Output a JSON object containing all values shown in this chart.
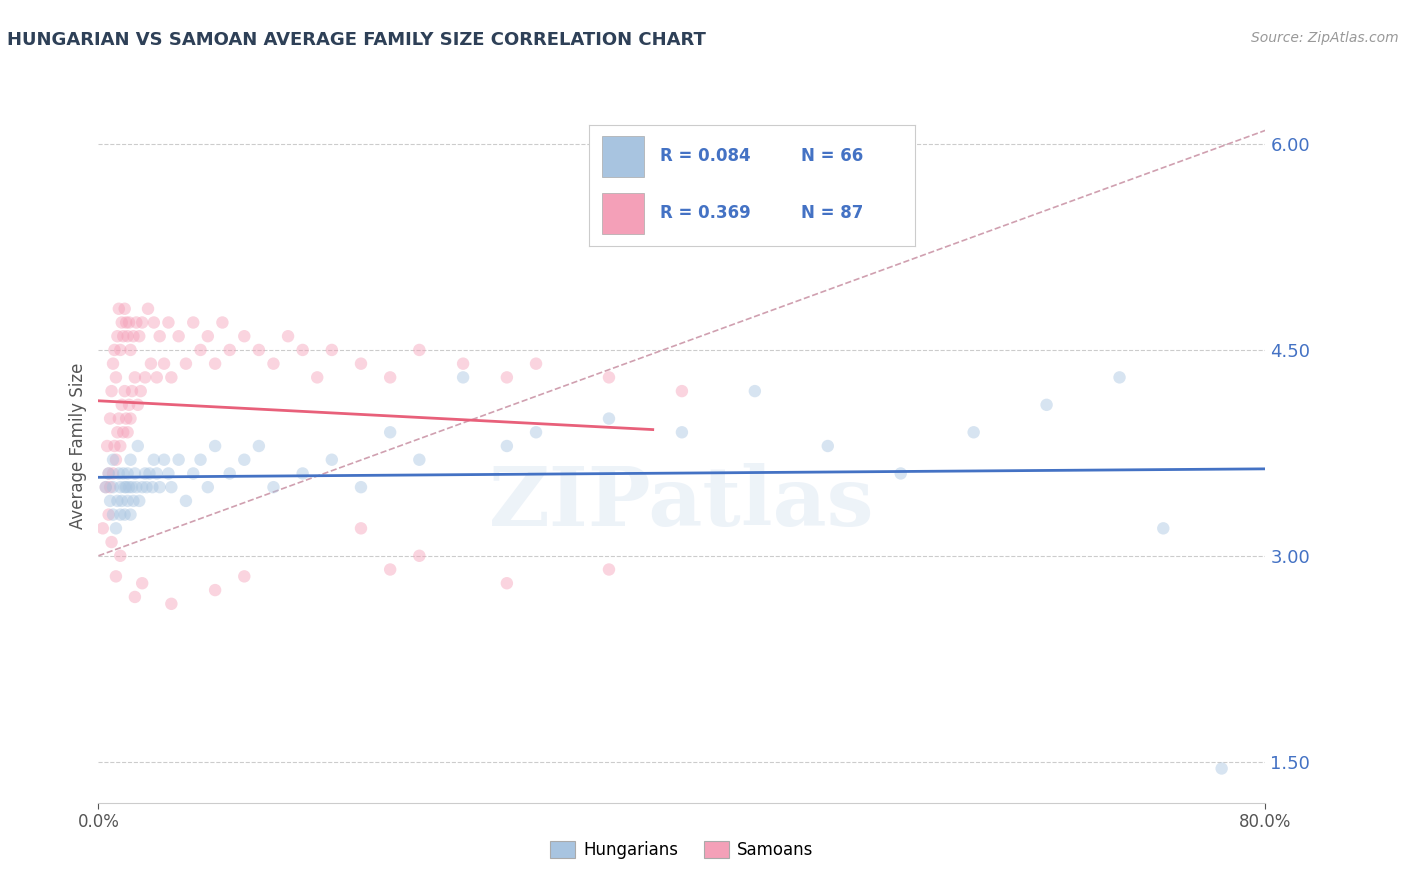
{
  "title": "HUNGARIAN VS SAMOAN AVERAGE FAMILY SIZE CORRELATION CHART",
  "source_text": "Source: ZipAtlas.com",
  "ylabel": "Average Family Size",
  "hungarian_color": "#a8c4e0",
  "samoan_color": "#f4a0b8",
  "hungarian_line_color": "#4472c4",
  "samoan_line_color": "#e8607a",
  "dashed_line_color": "#d0a0b0",
  "xlim": [
    0.0,
    0.8
  ],
  "ylim": [
    1.2,
    6.4
  ],
  "yticks": [
    1.5,
    3.0,
    4.5,
    6.0
  ],
  "xtick_labels": [
    "0.0%",
    "80.0%"
  ],
  "watermark_text": "ZIPatlas",
  "title_color": "#2e4057",
  "axis_color": "#4472c4",
  "background_color": "#ffffff",
  "grid_color": "#cccccc",
  "marker_size": 80,
  "marker_alpha": 0.45,
  "hun_r": "R = 0.084",
  "hun_n": "N = 66",
  "sam_r": "R = 0.369",
  "sam_n": "N = 87",
  "hungarian_scatter_x": [
    0.005,
    0.007,
    0.008,
    0.01,
    0.01,
    0.01,
    0.012,
    0.013,
    0.014,
    0.015,
    0.015,
    0.016,
    0.017,
    0.018,
    0.018,
    0.019,
    0.02,
    0.02,
    0.021,
    0.022,
    0.022,
    0.023,
    0.024,
    0.025,
    0.026,
    0.027,
    0.028,
    0.03,
    0.032,
    0.033,
    0.035,
    0.037,
    0.038,
    0.04,
    0.042,
    0.045,
    0.048,
    0.05,
    0.055,
    0.06,
    0.065,
    0.07,
    0.075,
    0.08,
    0.09,
    0.1,
    0.11,
    0.12,
    0.14,
    0.16,
    0.18,
    0.2,
    0.22,
    0.25,
    0.28,
    0.3,
    0.35,
    0.4,
    0.45,
    0.5,
    0.55,
    0.6,
    0.65,
    0.7,
    0.73,
    0.77
  ],
  "hungarian_scatter_y": [
    3.5,
    3.6,
    3.4,
    3.3,
    3.7,
    3.5,
    3.2,
    3.4,
    3.6,
    3.3,
    3.5,
    3.4,
    3.6,
    3.5,
    3.3,
    3.5,
    3.4,
    3.6,
    3.5,
    3.7,
    3.3,
    3.5,
    3.4,
    3.6,
    3.5,
    3.8,
    3.4,
    3.5,
    3.6,
    3.5,
    3.6,
    3.5,
    3.7,
    3.6,
    3.5,
    3.7,
    3.6,
    3.5,
    3.7,
    3.4,
    3.6,
    3.7,
    3.5,
    3.8,
    3.6,
    3.7,
    3.8,
    3.5,
    3.6,
    3.7,
    3.5,
    3.9,
    3.7,
    4.3,
    3.8,
    3.9,
    4.0,
    3.9,
    4.2,
    3.8,
    3.6,
    3.9,
    4.1,
    4.3,
    3.2,
    1.45
  ],
  "samoan_scatter_x": [
    0.003,
    0.005,
    0.006,
    0.007,
    0.008,
    0.008,
    0.009,
    0.01,
    0.01,
    0.011,
    0.011,
    0.012,
    0.012,
    0.013,
    0.013,
    0.014,
    0.014,
    0.015,
    0.015,
    0.016,
    0.016,
    0.017,
    0.017,
    0.018,
    0.018,
    0.019,
    0.019,
    0.02,
    0.02,
    0.021,
    0.021,
    0.022,
    0.022,
    0.023,
    0.024,
    0.025,
    0.026,
    0.027,
    0.028,
    0.029,
    0.03,
    0.032,
    0.034,
    0.036,
    0.038,
    0.04,
    0.042,
    0.045,
    0.048,
    0.05,
    0.055,
    0.06,
    0.065,
    0.07,
    0.075,
    0.08,
    0.085,
    0.09,
    0.1,
    0.11,
    0.12,
    0.13,
    0.14,
    0.15,
    0.16,
    0.18,
    0.2,
    0.22,
    0.25,
    0.28,
    0.3,
    0.35,
    0.4,
    0.2,
    0.1,
    0.08,
    0.05,
    0.03,
    0.025,
    0.015,
    0.012,
    0.009,
    0.007,
    0.18,
    0.22,
    0.28,
    0.35
  ],
  "samoan_scatter_y": [
    3.2,
    3.5,
    3.8,
    3.3,
    4.0,
    3.5,
    4.2,
    3.6,
    4.4,
    3.8,
    4.5,
    3.7,
    4.3,
    3.9,
    4.6,
    4.0,
    4.8,
    3.8,
    4.5,
    4.1,
    4.7,
    3.9,
    4.6,
    4.2,
    4.8,
    4.0,
    4.7,
    3.9,
    4.6,
    4.1,
    4.7,
    4.0,
    4.5,
    4.2,
    4.6,
    4.3,
    4.7,
    4.1,
    4.6,
    4.2,
    4.7,
    4.3,
    4.8,
    4.4,
    4.7,
    4.3,
    4.6,
    4.4,
    4.7,
    4.3,
    4.6,
    4.4,
    4.7,
    4.5,
    4.6,
    4.4,
    4.7,
    4.5,
    4.6,
    4.5,
    4.4,
    4.6,
    4.5,
    4.3,
    4.5,
    4.4,
    4.3,
    4.5,
    4.4,
    4.3,
    4.4,
    4.3,
    4.2,
    2.9,
    2.85,
    2.75,
    2.65,
    2.8,
    2.7,
    3.0,
    2.85,
    3.1,
    3.6,
    3.2,
    3.0,
    2.8,
    2.9
  ]
}
